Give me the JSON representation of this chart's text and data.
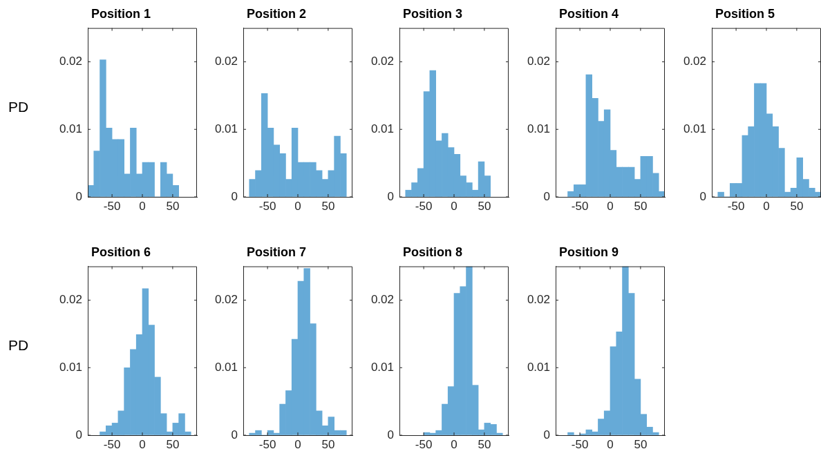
{
  "chart_data": [
    {
      "type": "histogram",
      "title": "Position 1",
      "ylabel": "PD",
      "color": "#66aad7",
      "xlim": [
        -90,
        90
      ],
      "ylim": [
        0,
        0.025
      ],
      "xticks": [
        -50,
        0,
        50
      ],
      "yticks": [
        0,
        0.01,
        0.02
      ],
      "bins": [
        -90,
        -80,
        -70,
        -60,
        -50,
        -40,
        -30,
        -20,
        -10,
        0,
        10,
        20,
        30,
        40,
        50,
        60
      ],
      "values": [
        0.0017,
        0.0068,
        0.0203,
        0.0102,
        0.0085,
        0.0085,
        0.0034,
        0.0102,
        0.0034,
        0.0051,
        0.0051,
        0,
        0.0051,
        0.0034,
        0.0017
      ]
    },
    {
      "type": "histogram",
      "title": "Position 2",
      "color": "#66aad7",
      "xlim": [
        -90,
        90
      ],
      "ylim": [
        0,
        0.025
      ],
      "xticks": [
        -50,
        0,
        50
      ],
      "yticks": [
        0,
        0.01,
        0.02
      ],
      "bins": [
        -80,
        -70,
        -60,
        -50,
        -40,
        -30,
        -20,
        -10,
        0,
        10,
        20,
        30,
        40,
        50,
        60,
        70,
        80
      ],
      "values": [
        0.0026,
        0.0039,
        0.0153,
        0.0102,
        0.0077,
        0.0064,
        0.0026,
        0.0102,
        0.0051,
        0.0051,
        0.0051,
        0.0039,
        0.0026,
        0.0039,
        0.009,
        0.0064
      ]
    },
    {
      "type": "histogram",
      "title": "Position 3",
      "color": "#66aad7",
      "xlim": [
        -90,
        90
      ],
      "ylim": [
        0,
        0.025
      ],
      "xticks": [
        -50,
        0,
        50
      ],
      "yticks": [
        0,
        0.01,
        0.02
      ],
      "bins": [
        -80,
        -70,
        -60,
        -50,
        -40,
        -30,
        -20,
        -10,
        0,
        10,
        20,
        30,
        40,
        50,
        60
      ],
      "values": [
        0.001,
        0.0021,
        0.0042,
        0.0156,
        0.0187,
        0.0083,
        0.0094,
        0.0073,
        0.0063,
        0.0031,
        0.0021,
        0.001,
        0.0052,
        0.0031
      ]
    },
    {
      "type": "histogram",
      "title": "Position 4",
      "color": "#66aad7",
      "xlim": [
        -90,
        90
      ],
      "ylim": [
        0,
        0.025
      ],
      "xticks": [
        -50,
        0,
        50
      ],
      "yticks": [
        0,
        0.01,
        0.02
      ],
      "bins": [
        -70,
        -60,
        -50,
        -40,
        -30,
        -20,
        -10,
        0,
        10,
        20,
        30,
        40,
        50,
        60,
        70,
        80,
        90
      ],
      "values": [
        0.0008,
        0.0018,
        0.0018,
        0.0181,
        0.0146,
        0.0112,
        0.0129,
        0.0069,
        0.0044,
        0.0044,
        0.0044,
        0.0026,
        0.006,
        0.006,
        0.0035,
        0.0008
      ]
    },
    {
      "type": "histogram",
      "title": "Position 5",
      "color": "#66aad7",
      "xlim": [
        -90,
        90
      ],
      "ylim": [
        0,
        0.025
      ],
      "xticks": [
        -50,
        0,
        50
      ],
      "yticks": [
        0,
        0.01,
        0.02
      ],
      "bins": [
        -80,
        -70,
        -60,
        -50,
        -40,
        -30,
        -20,
        -10,
        0,
        10,
        20,
        30,
        40,
        50,
        60,
        70,
        80,
        90
      ],
      "values": [
        0.0007,
        0,
        0.002,
        0.002,
        0.0091,
        0.0104,
        0.0168,
        0.0168,
        0.0123,
        0.0104,
        0.0072,
        0.0007,
        0.0013,
        0.0058,
        0.0026,
        0.0013,
        0.0007
      ]
    },
    {
      "type": "histogram",
      "title": "Position 6",
      "ylabel": "PD",
      "color": "#66aad7",
      "xlim": [
        -90,
        90
      ],
      "ylim": [
        0,
        0.025
      ],
      "xticks": [
        -50,
        0,
        50
      ],
      "yticks": [
        0,
        0.01,
        0.02
      ],
      "bins": [
        -70,
        -60,
        -50,
        -40,
        -30,
        -20,
        -10,
        0,
        10,
        20,
        30,
        40,
        50,
        60,
        70,
        80
      ],
      "values": [
        0.0005,
        0.0014,
        0.0018,
        0.0036,
        0.01,
        0.0127,
        0.0149,
        0.0217,
        0.0163,
        0.0086,
        0.0032,
        0.0005,
        0.0018,
        0.0032,
        0.0005
      ]
    },
    {
      "type": "histogram",
      "title": "Position 7",
      "color": "#66aad7",
      "xlim": [
        -90,
        90
      ],
      "ylim": [
        0,
        0.025
      ],
      "xticks": [
        -50,
        0,
        50
      ],
      "yticks": [
        0,
        0.01,
        0.02
      ],
      "bins": [
        -80,
        -70,
        -60,
        -50,
        -40,
        -30,
        -20,
        -10,
        0,
        10,
        20,
        30,
        40,
        50,
        60,
        70,
        80
      ],
      "values": [
        0.0003,
        0.0007,
        0,
        0.0007,
        0.0003,
        0.0046,
        0.0066,
        0.0142,
        0.0228,
        0.0247,
        0.0165,
        0.0036,
        0.0014,
        0.0027,
        0.0007,
        0.0007
      ]
    },
    {
      "type": "histogram",
      "title": "Position 8",
      "color": "#66aad7",
      "xlim": [
        -90,
        90
      ],
      "ylim": [
        0,
        0.025
      ],
      "xticks": [
        -50,
        0,
        50
      ],
      "yticks": [
        0,
        0.01,
        0.02
      ],
      "bins": [
        -50,
        -40,
        -30,
        -20,
        -10,
        0,
        10,
        20,
        30,
        40,
        50,
        60,
        70,
        80
      ],
      "values": [
        0.0004,
        0.0003,
        0.0007,
        0.0046,
        0.0072,
        0.021,
        0.022,
        0.025,
        0.0074,
        0.0008,
        0.0018,
        0.0016,
        0.0003
      ]
    },
    {
      "type": "histogram",
      "title": "Position 9",
      "color": "#66aad7",
      "xlim": [
        -90,
        90
      ],
      "ylim": [
        0,
        0.025
      ],
      "xticks": [
        -50,
        0,
        50
      ],
      "yticks": [
        0,
        0.01,
        0.02
      ],
      "bins": [
        -70,
        -60,
        -50,
        -40,
        -30,
        -20,
        -10,
        0,
        10,
        20,
        30,
        40,
        50,
        60,
        70,
        80
      ],
      "values": [
        0.0004,
        0,
        0.0002,
        0.0008,
        0.0005,
        0.0024,
        0.0036,
        0.0131,
        0.0153,
        0.025,
        0.021,
        0.0083,
        0.0031,
        0.0012,
        0.0004
      ]
    }
  ]
}
